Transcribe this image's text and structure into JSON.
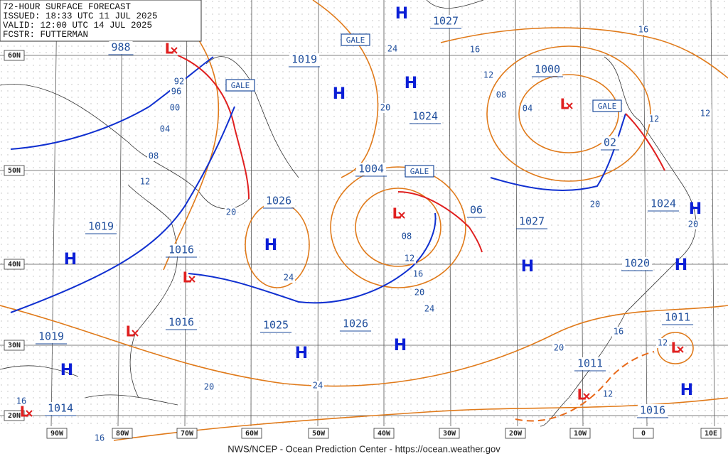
{
  "header": {
    "lines": [
      "72-HOUR SURFACE FORECAST",
      "ISSUED: 18:33 UTC 11 JUL 2025",
      "VALID:  12:00 UTC 14 JUL 2025",
      "FCSTR:  FUTTERMAN"
    ]
  },
  "footer": "NWS/NCEP - Ocean Prediction Center - https://ocean.weather.gov",
  "latitude_labels": [
    "60N",
    "50N",
    "40N",
    "30N",
    "20N"
  ],
  "longitude_labels": [
    "90W",
    "80W",
    "70W",
    "60W",
    "50W",
    "40W",
    "30W",
    "20W",
    "10W",
    "0",
    "10E"
  ],
  "isobar_labels": [
    "988",
    "1019",
    "1027",
    "1024",
    "1000",
    "1004",
    "1026",
    "1019",
    "1016",
    "1016",
    "1025",
    "1026",
    "1027",
    "1020",
    "1011",
    "1011",
    "1014",
    "1019",
    "1024",
    "1016",
    "02",
    "06"
  ],
  "contour_labels": [
    "24",
    "16",
    "16",
    "12",
    "08",
    "04",
    "20",
    "92",
    "96",
    "00",
    "04",
    "08",
    "12",
    "20",
    "08",
    "12",
    "16",
    "20",
    "24",
    "24",
    "20",
    "20",
    "12",
    "12",
    "16",
    "20",
    "12",
    "12",
    "24",
    "20",
    "16",
    "16"
  ],
  "high_labels": [
    "H",
    "H",
    "H",
    "H",
    "H",
    "H",
    "H",
    "H",
    "H",
    "H",
    "H",
    "H"
  ],
  "low_labels": [
    "L",
    "L",
    "L",
    "L",
    "L",
    "L",
    "L",
    "L"
  ],
  "gale_labels": [
    "GALE",
    "GALE",
    "GALE",
    "GALE"
  ]
}
